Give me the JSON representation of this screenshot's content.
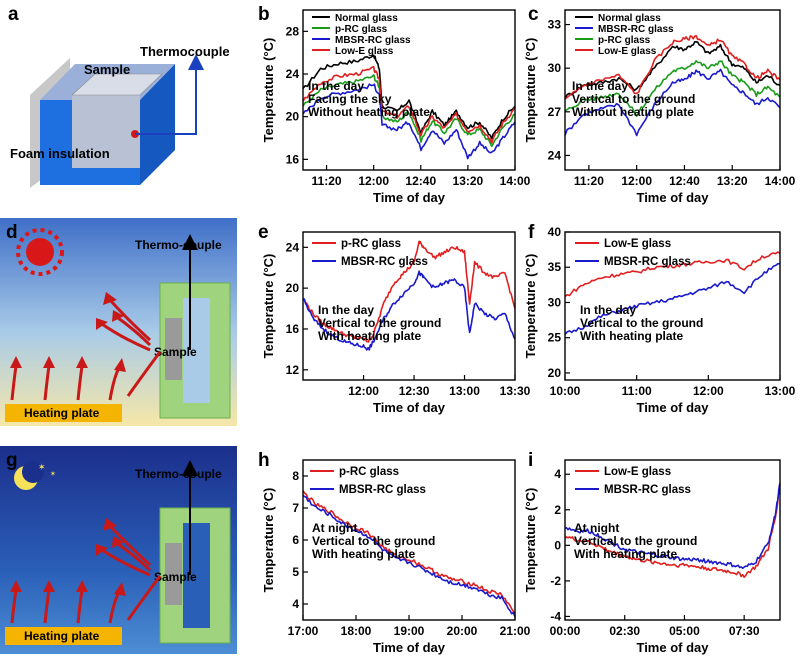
{
  "panel_letters": {
    "a": "a",
    "b": "b",
    "c": "c",
    "d": "d",
    "e": "e",
    "f": "f",
    "g": "g",
    "h": "h",
    "i": "i"
  },
  "diagram_a": {
    "sample": "Sample",
    "thermocouple": "Thermocouple",
    "foam": "Foam insulation"
  },
  "diagram_d": {
    "thermo": "Thermo-couple",
    "sample": "Sample",
    "heating": "Heating plate"
  },
  "diagram_g": {
    "thermo": "Thermo-couple",
    "sample": "Sample",
    "heating": "Heating plate"
  },
  "colors": {
    "black": "#000000",
    "green": "#1a9c1a",
    "blue": "#1a1acc",
    "red": "#e02020"
  },
  "chart_data": [
    {
      "id": "b",
      "type": "line",
      "xlabel": "Time of day",
      "ylabel": "Temperature (°C)",
      "x_ticks": [
        "11:20",
        "12:00",
        "12:40",
        "13:20",
        "14:00"
      ],
      "y_ticks": [
        "16",
        "20",
        "24",
        "28"
      ],
      "xlim": [
        11.0,
        14.0
      ],
      "ylim": [
        15,
        30
      ],
      "notes": [
        "In the day",
        "Facing the sky",
        "Without heating plate"
      ],
      "series": [
        {
          "name": "Normal glass",
          "color": "#000000",
          "x": [
            11.0,
            11.25,
            11.5,
            11.75,
            12.0,
            12.08,
            12.12,
            12.33,
            12.5,
            12.67,
            12.83,
            13.0,
            13.17,
            13.33,
            13.5,
            13.67,
            13.83,
            14.0
          ],
          "y": [
            22.5,
            24.5,
            25.0,
            25.2,
            25.8,
            24.5,
            21.0,
            20.5,
            21.5,
            18.5,
            20.5,
            19.2,
            20.5,
            19.0,
            19.5,
            18.0,
            19.8,
            21.0
          ]
        },
        {
          "name": "p-RC glass",
          "color": "#1a9c1a",
          "x": [
            11.0,
            11.25,
            11.5,
            11.75,
            12.0,
            12.08,
            12.12,
            12.33,
            12.5,
            12.67,
            12.83,
            13.0,
            13.17,
            13.33,
            13.5,
            13.67,
            13.83,
            14.0
          ],
          "y": [
            21.0,
            22.5,
            23.0,
            23.3,
            23.8,
            22.8,
            20.0,
            19.5,
            20.5,
            17.8,
            19.6,
            18.5,
            19.8,
            18.3,
            18.8,
            17.3,
            19.0,
            20.2
          ]
        },
        {
          "name": "MBSR-RC glass",
          "color": "#1a1acc",
          "x": [
            11.0,
            11.25,
            11.5,
            11.75,
            12.0,
            12.08,
            12.12,
            12.33,
            12.5,
            12.67,
            12.83,
            13.0,
            13.17,
            13.33,
            13.5,
            13.67,
            13.83,
            14.0
          ],
          "y": [
            20.2,
            21.8,
            22.2,
            22.5,
            23.0,
            22.0,
            19.2,
            18.8,
            19.5,
            17.0,
            18.8,
            17.5,
            18.8,
            16.2,
            17.5,
            16.5,
            18.0,
            19.5
          ]
        },
        {
          "name": "Low-E glass",
          "color": "#e02020",
          "x": [
            11.0,
            11.25,
            11.5,
            11.75,
            12.0,
            12.08,
            12.12,
            12.33,
            12.5,
            12.67,
            12.83,
            13.0,
            13.17,
            13.33,
            13.5,
            13.67,
            13.83,
            14.0
          ],
          "y": [
            21.5,
            23.2,
            23.8,
            24.0,
            24.5,
            23.5,
            20.5,
            20.0,
            21.0,
            18.3,
            20.0,
            18.9,
            20.2,
            18.7,
            19.2,
            17.7,
            19.4,
            20.8
          ]
        }
      ]
    },
    {
      "id": "c",
      "type": "line",
      "xlabel": "Time of day",
      "ylabel": "Temperature (°C)",
      "x_ticks": [
        "11:20",
        "12:00",
        "12:40",
        "13:20",
        "14:00"
      ],
      "y_ticks": [
        "24",
        "27",
        "30",
        "33"
      ],
      "xlim": [
        11.0,
        14.0
      ],
      "ylim": [
        23,
        34
      ],
      "notes": [
        "In the day",
        "Vertical to the ground",
        "Without heating plate"
      ],
      "series": [
        {
          "name": "Normal glass",
          "color": "#000000",
          "x": [
            11.0,
            11.25,
            11.5,
            11.75,
            12.0,
            12.25,
            12.5,
            12.67,
            12.83,
            13.0,
            13.17,
            13.33,
            13.5,
            13.67,
            13.83,
            14.0
          ],
          "y": [
            28.0,
            28.8,
            29.0,
            29.3,
            28.5,
            30.0,
            31.5,
            31.3,
            31.8,
            31.0,
            31.5,
            30.3,
            30.0,
            29.0,
            29.5,
            28.8
          ]
        },
        {
          "name": "MBSR-RC glass",
          "color": "#1a1acc",
          "x": [
            11.0,
            11.25,
            11.5,
            11.75,
            12.0,
            12.25,
            12.5,
            12.67,
            12.83,
            13.0,
            13.17,
            13.33,
            13.5,
            13.67,
            13.83,
            14.0
          ],
          "y": [
            25.5,
            26.8,
            27.2,
            27.5,
            25.5,
            27.5,
            29.0,
            29.2,
            29.8,
            29.3,
            29.8,
            28.8,
            28.3,
            27.5,
            28.0,
            27.3
          ]
        },
        {
          "name": "p-RC glass",
          "color": "#1a9c1a",
          "x": [
            11.0,
            11.25,
            11.5,
            11.75,
            12.0,
            12.25,
            12.5,
            12.67,
            12.83,
            13.0,
            13.17,
            13.33,
            13.5,
            13.67,
            13.83,
            14.0
          ],
          "y": [
            27.0,
            27.8,
            28.0,
            28.3,
            26.8,
            28.5,
            29.8,
            30.0,
            30.5,
            30.0,
            30.5,
            29.5,
            29.0,
            28.2,
            28.7,
            28.0
          ]
        },
        {
          "name": "Low-E glass",
          "color": "#e02020",
          "x": [
            11.0,
            11.25,
            11.5,
            11.75,
            12.0,
            12.25,
            12.5,
            12.67,
            12.83,
            13.0,
            13.17,
            13.33,
            13.5,
            13.67,
            13.83,
            14.0
          ],
          "y": [
            27.8,
            28.8,
            29.2,
            29.5,
            28.2,
            30.5,
            31.8,
            32.0,
            32.2,
            31.5,
            32.0,
            30.8,
            30.3,
            29.3,
            29.8,
            29.2
          ]
        }
      ]
    },
    {
      "id": "e",
      "type": "line",
      "xlabel": "Time of day",
      "ylabel": "Temperature (°C)",
      "x_ticks": [
        "12:00",
        "12:30",
        "13:00",
        "13:30"
      ],
      "y_ticks": [
        "12",
        "16",
        "20",
        "24"
      ],
      "xlim": [
        11.4,
        13.5
      ],
      "ylim": [
        11,
        25.5
      ],
      "notes": [
        "In the day",
        "Vertical to the ground",
        "With heating plate"
      ],
      "series": [
        {
          "name": "p-RC glass",
          "color": "#e02020",
          "x": [
            11.4,
            11.5,
            11.6,
            11.7,
            11.8,
            11.9,
            12.0,
            12.05,
            12.1,
            12.2,
            12.3,
            12.4,
            12.5,
            12.55,
            12.6,
            12.7,
            12.8,
            12.9,
            13.0,
            13.05,
            13.1,
            13.2,
            13.3,
            13.4,
            13.5
          ],
          "y": [
            19.0,
            17.5,
            16.5,
            16.0,
            15.5,
            15.2,
            15.0,
            14.8,
            15.5,
            18.5,
            20.5,
            21.5,
            22.5,
            24.5,
            24.0,
            23.0,
            23.5,
            24.0,
            23.5,
            18.5,
            22.5,
            21.5,
            21.0,
            21.5,
            18.0
          ]
        },
        {
          "name": "MBSR-RC glass",
          "color": "#1a1acc",
          "x": [
            11.4,
            11.5,
            11.6,
            11.7,
            11.8,
            11.9,
            12.0,
            12.05,
            12.1,
            12.2,
            12.3,
            12.4,
            12.5,
            12.55,
            12.6,
            12.7,
            12.8,
            12.9,
            13.0,
            13.05,
            13.1,
            13.2,
            13.3,
            13.4,
            13.5
          ],
          "y": [
            19.0,
            17.0,
            16.0,
            15.3,
            14.8,
            14.5,
            14.3,
            14.0,
            14.8,
            17.0,
            18.5,
            19.5,
            20.5,
            21.5,
            21.0,
            20.0,
            20.5,
            20.8,
            20.0,
            15.5,
            18.5,
            17.5,
            17.0,
            17.5,
            15.0
          ]
        }
      ]
    },
    {
      "id": "f",
      "type": "line",
      "xlabel": "Time of day",
      "ylabel": "Temperature (°C)",
      "x_ticks": [
        "10:00",
        "11:00",
        "12:00",
        "13:00"
      ],
      "y_ticks": [
        "20",
        "25",
        "30",
        "35",
        "40"
      ],
      "xlim": [
        10.0,
        13.0
      ],
      "ylim": [
        19,
        40
      ],
      "notes": [
        "In the day",
        "Vertical to the ground",
        "With heating plate"
      ],
      "series": [
        {
          "name": "Low-E glass",
          "color": "#e02020",
          "x": [
            10.0,
            10.25,
            10.5,
            10.75,
            11.0,
            11.25,
            11.5,
            11.75,
            12.0,
            12.25,
            12.5,
            12.75,
            13.0
          ],
          "y": [
            30.8,
            32.5,
            33.5,
            34.0,
            34.3,
            35.0,
            35.2,
            35.5,
            35.8,
            36.0,
            34.8,
            36.5,
            37.0
          ]
        },
        {
          "name": "MBSR-RC glass",
          "color": "#1a1acc",
          "x": [
            10.0,
            10.25,
            10.5,
            10.75,
            11.0,
            11.25,
            11.5,
            11.75,
            12.0,
            12.25,
            12.5,
            12.75,
            13.0
          ],
          "y": [
            25.5,
            26.5,
            28.0,
            28.8,
            29.5,
            30.0,
            30.5,
            31.3,
            32.0,
            33.0,
            31.5,
            34.0,
            35.5
          ]
        }
      ]
    },
    {
      "id": "h",
      "type": "line",
      "xlabel": "Time of day",
      "ylabel": "Temperature (°C)",
      "x_ticks": [
        "17:00",
        "18:00",
        "19:00",
        "20:00",
        "21:00"
      ],
      "y_ticks": [
        "4",
        "5",
        "6",
        "7",
        "8"
      ],
      "xlim": [
        17.0,
        21.0
      ],
      "ylim": [
        3.5,
        8.5
      ],
      "notes": [
        "At night",
        "Vertical to the ground",
        "With heating plate"
      ],
      "series": [
        {
          "name": "p-RC glass",
          "color": "#e02020",
          "x": [
            17.0,
            17.25,
            17.5,
            17.75,
            18.0,
            18.25,
            18.5,
            18.75,
            19.0,
            19.25,
            19.5,
            19.75,
            20.0,
            20.25,
            20.5,
            20.75,
            21.0
          ],
          "y": [
            7.5,
            7.1,
            6.9,
            6.6,
            6.4,
            6.2,
            5.8,
            5.5,
            5.4,
            5.2,
            5.0,
            4.8,
            4.7,
            4.6,
            4.4,
            4.3,
            3.7
          ]
        },
        {
          "name": "MBSR-RC glass",
          "color": "#1a1acc",
          "x": [
            17.0,
            17.25,
            17.5,
            17.75,
            18.0,
            18.25,
            18.5,
            18.75,
            19.0,
            19.25,
            19.5,
            19.75,
            20.0,
            20.25,
            20.5,
            20.75,
            21.0
          ],
          "y": [
            7.4,
            7.0,
            6.8,
            6.5,
            6.3,
            6.1,
            5.7,
            5.4,
            5.3,
            5.1,
            4.9,
            4.7,
            4.6,
            4.5,
            4.3,
            4.2,
            3.6
          ]
        }
      ]
    },
    {
      "id": "i",
      "type": "line",
      "xlabel": "Time of day",
      "ylabel": "Temperature (°C)",
      "x_ticks": [
        "00:00",
        "02:30",
        "05:00",
        "07:30"
      ],
      "y_ticks": [
        "-4",
        "-2",
        "0",
        "2",
        "4"
      ],
      "xlim": [
        0.0,
        9.0
      ],
      "ylim": [
        -4.2,
        4.8
      ],
      "notes": [
        "At night",
        "Vertical to the ground",
        "With heating plate"
      ],
      "series": [
        {
          "name": "Low-E glass",
          "color": "#e02020",
          "x": [
            0.0,
            0.5,
            1.0,
            1.5,
            2.0,
            2.5,
            3.0,
            3.5,
            4.0,
            4.5,
            5.0,
            5.5,
            6.0,
            6.5,
            7.0,
            7.5,
            8.0,
            8.5,
            8.8,
            9.0
          ],
          "y": [
            0.5,
            0.3,
            0.2,
            -0.1,
            -0.4,
            -0.6,
            -0.8,
            -0.9,
            -1.0,
            -1.1,
            -1.1,
            -1.2,
            -1.3,
            -1.4,
            -1.5,
            -1.7,
            -1.2,
            -0.2,
            1.5,
            3.4
          ]
        },
        {
          "name": "MBSR-RC glass",
          "color": "#1a1acc",
          "x": [
            0.0,
            0.5,
            1.0,
            1.5,
            2.0,
            2.5,
            3.0,
            3.5,
            4.0,
            4.5,
            5.0,
            5.5,
            6.0,
            6.5,
            7.0,
            7.5,
            8.0,
            8.5,
            8.8,
            9.0
          ],
          "y": [
            1.0,
            0.8,
            0.8,
            0.5,
            0.1,
            -0.2,
            -0.4,
            -0.5,
            -0.6,
            -0.7,
            -0.8,
            -0.8,
            -0.9,
            -1.0,
            -1.1,
            -1.3,
            -0.9,
            0.1,
            1.7,
            3.5
          ]
        }
      ]
    }
  ]
}
